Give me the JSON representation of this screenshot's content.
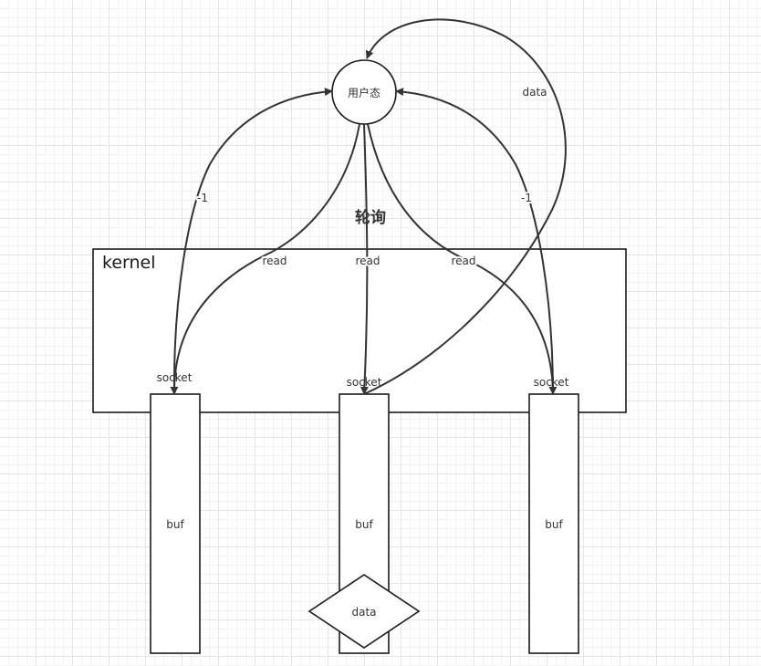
{
  "nodes": {
    "user_state": "用户态",
    "kernel": "kernel",
    "socket_left": "socket",
    "socket_middle": "socket",
    "socket_right": "socket",
    "buf_left": "buf",
    "buf_middle": "buf",
    "buf_right": "buf",
    "data_diamond": "data"
  },
  "edge_labels": {
    "polling": "轮询",
    "read_left": "read",
    "read_middle": "read",
    "read_right": "read",
    "return_left": "-1",
    "return_right": "-1",
    "data_return": "data"
  }
}
